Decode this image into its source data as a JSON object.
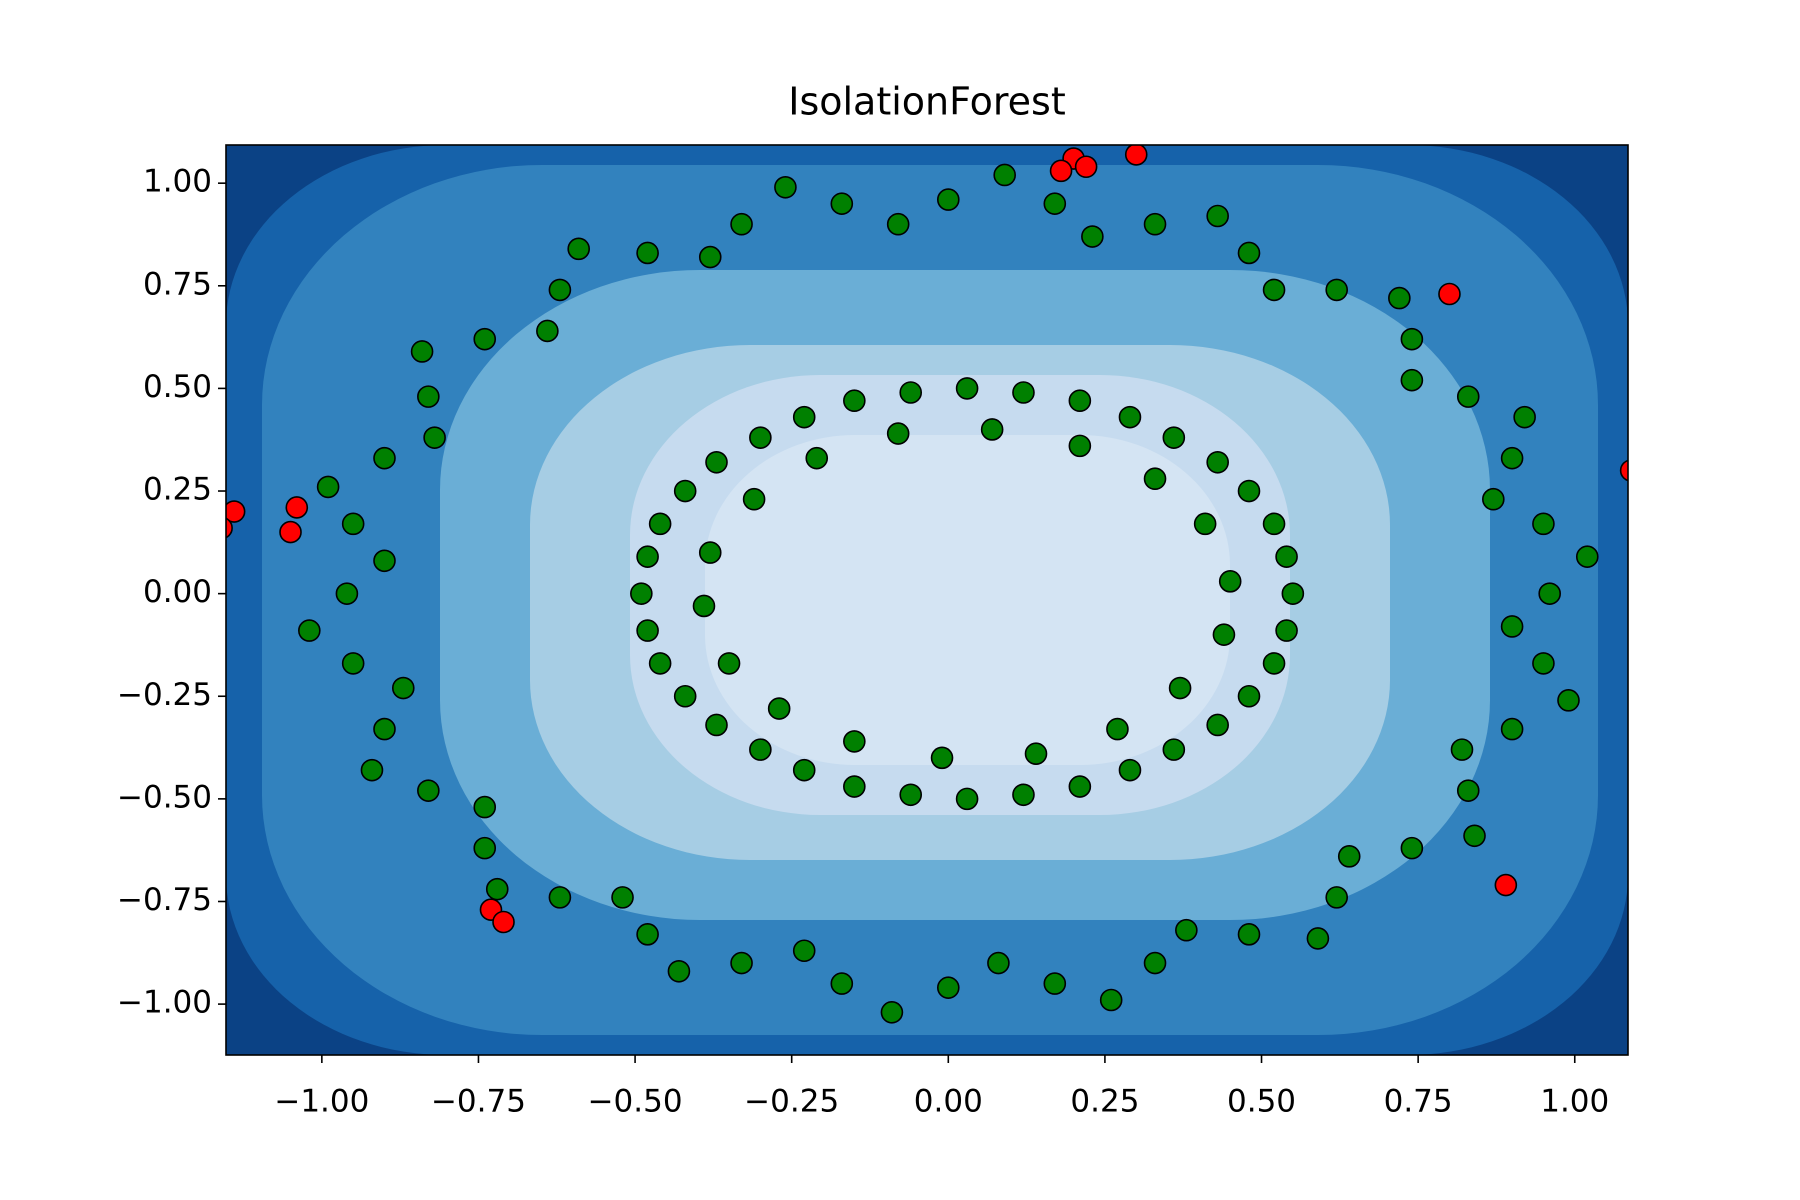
{
  "chart_data": {
    "type": "scatter",
    "title": "IsolationForest",
    "xlim": [
      -1.153,
      1.085
    ],
    "ylim": [
      -1.124,
      1.093
    ],
    "xticks": [
      {
        "value": -1,
        "label": "−1.00"
      },
      {
        "value": -0.75,
        "label": "−0.75"
      },
      {
        "value": -0.5,
        "label": "−0.50"
      },
      {
        "value": -0.25,
        "label": "−0.25"
      },
      {
        "value": 0,
        "label": "0.00"
      },
      0.25,
      {
        "value": 0.5,
        "label": "0.50"
      },
      0.75,
      {
        "value": 1,
        "label": "1.00"
      }
    ],
    "yticks": [
      {
        "value": -1,
        "label": "−1.00"
      },
      {
        "value": -0.75,
        "label": "−0.75"
      },
      {
        "value": -0.5,
        "label": "−0.50"
      },
      {
        "value": -0.25,
        "label": "−0.25"
      },
      {
        "value": 0,
        "label": "0.00"
      },
      0.25,
      {
        "value": 0.5,
        "label": "0.50"
      },
      0.75,
      {
        "value": 1,
        "label": "1.00"
      }
    ],
    "series": [
      {
        "color": "green",
        "x": [
          0.96,
          0.95,
          0.9,
          0.83,
          0.74,
          0.62,
          0.48,
          0.33,
          0.17,
          0,
          -0.17,
          -0.33,
          -0.48,
          -0.62,
          -0.74,
          -0.83,
          -0.9,
          -0.95,
          -0.96,
          -0.95,
          -0.9,
          -0.83,
          -0.74,
          -0.62,
          -0.48,
          -0.33,
          -0.17,
          0,
          0.17,
          0.33,
          0.48,
          0.62,
          0.74,
          0.83,
          0.9,
          0.95,
          1.02,
          0.87,
          0.92,
          0.74,
          0.72,
          0.52,
          0.43,
          0.23,
          0.09,
          -0.08,
          -0.26,
          -0.38,
          -0.59,
          -0.64,
          -0.84,
          -0.82,
          -0.99,
          -0.9,
          -1.02,
          -0.87,
          -0.92,
          -0.74,
          -0.72,
          -0.52,
          -0.43,
          -0.23,
          -0.09,
          0.08,
          0.26,
          0.38,
          0.59,
          0.64,
          0.84,
          0.82,
          0.99,
          0.9,
          0.55,
          0.54,
          0.52,
          0.48,
          0.43,
          0.36,
          0.29,
          0.21,
          0.12,
          0.03,
          -0.06,
          -0.15,
          -0.23,
          -0.3,
          -0.37,
          -0.42,
          -0.46,
          -0.48,
          -0.49,
          -0.48,
          -0.46,
          -0.42,
          -0.37,
          -0.3,
          -0.23,
          -0.15,
          -0.06,
          0.03,
          0.12,
          0.21,
          0.29,
          0.36,
          0.43,
          0.48,
          0.52,
          0.54,
          0.45,
          0.41,
          0.33,
          0.21,
          0.07,
          -0.08,
          -0.21,
          -0.31,
          -0.38,
          -0.39,
          -0.35,
          -0.27,
          -0.15,
          -0.01,
          0.14,
          0.27,
          0.37,
          0.44
        ],
        "values": [
          0,
          0.17,
          0.33,
          0.48,
          0.62,
          0.74,
          0.83,
          0.9,
          0.95,
          0.96,
          0.95,
          0.9,
          0.83,
          0.74,
          0.62,
          0.48,
          0.33,
          0.17,
          0,
          -0.17,
          -0.33,
          -0.48,
          -0.62,
          -0.74,
          -0.83,
          -0.9,
          -0.95,
          -0.96,
          -0.95,
          -0.9,
          -0.83,
          -0.74,
          -0.62,
          -0.48,
          -0.33,
          -0.17,
          0.09,
          0.23,
          0.43,
          0.52,
          0.72,
          0.74,
          0.92,
          0.87,
          1.02,
          0.9,
          0.99,
          0.82,
          0.84,
          0.64,
          0.59,
          0.38,
          0.26,
          0.08,
          -0.09,
          -0.23,
          -0.43,
          -0.52,
          -0.72,
          -0.74,
          -0.92,
          -0.87,
          -1.02,
          -0.9,
          -0.99,
          -0.82,
          -0.84,
          -0.64,
          -0.59,
          -0.38,
          -0.26,
          -0.08,
          0,
          0.09,
          0.17,
          0.25,
          0.32,
          0.38,
          0.43,
          0.47,
          0.49,
          0.5,
          0.49,
          0.47,
          0.43,
          0.38,
          0.32,
          0.25,
          0.17,
          0.09,
          0,
          -0.09,
          -0.17,
          -0.25,
          -0.32,
          -0.38,
          -0.43,
          -0.47,
          -0.49,
          -0.5,
          -0.49,
          -0.47,
          -0.43,
          -0.38,
          -0.32,
          -0.25,
          -0.17,
          -0.09,
          0.03,
          0.17,
          0.28,
          0.36,
          0.4,
          0.39,
          0.33,
          0.23,
          0.1,
          -0.03,
          -0.17,
          -0.28,
          -0.36,
          -0.4,
          -0.39,
          -0.33,
          -0.23,
          -0.1
        ]
      },
      {
        "color": "red",
        "x": [
          0.2,
          0.22,
          0.18,
          0.3,
          0.8,
          1.09,
          -1.14,
          -1.04,
          -1.05,
          -1.16,
          -0.73,
          -0.71,
          0.89
        ],
        "values": [
          1.06,
          1.04,
          1.03,
          1.07,
          0.73,
          0.3,
          0.2,
          0.21,
          0.15,
          0.16,
          -0.77,
          -0.8,
          -0.71
        ]
      }
    ]
  }
}
